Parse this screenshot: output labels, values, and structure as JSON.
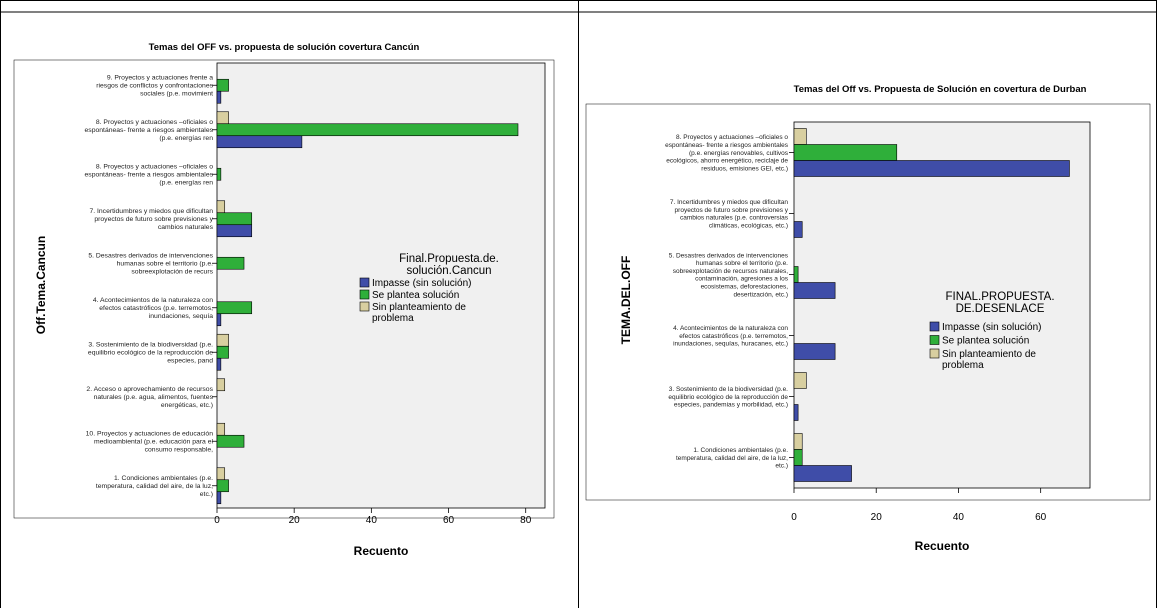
{
  "colors": {
    "impasse": "#3F4DA8",
    "plantea": "#2FAF3A",
    "sin": "#D8CFA0",
    "plot_bg": "#F0F0F0"
  },
  "chart_data": [
    {
      "type": "bar",
      "orientation": "horizontal",
      "title": "Temas del OFF vs. propuesta de solución covertura Cancún",
      "xlabel": "Recuento",
      "ylabel": "Off.Tema.Cancun",
      "xlim": [
        0,
        85
      ],
      "xticks": [
        0,
        20,
        40,
        60,
        80
      ],
      "legend": {
        "title": [
          "Final.Propuesta.de.",
          "solución.Cancun"
        ],
        "position": "right",
        "entries": [
          "Impasse (sin solución)",
          "Se plantea solución",
          "Sin planteamiento de problema"
        ]
      },
      "categories": [
        [
          "9. Proyectos y actuaciones frente a",
          "riesgos de conflictos y confrontaciones",
          "sociales (p.e. movimient"
        ],
        [
          "8. Proyectos y actuaciones –oficiales o",
          "espontáneas- frente a riesgos ambientales",
          "(p.e. energías ren"
        ],
        [
          "8. Proyectos y actuaciones –oficiales o",
          "espontáneas- frente a riesgos ambientales",
          "(p.e. energías ren"
        ],
        [
          "7. Incertidumbres y miedos que dificultan",
          "proyectos de futuro sobre previsiones y",
          "cambios naturales"
        ],
        [
          "5. Desastres derivados de intervenciones",
          "humanas sobre el territorio (p.e.",
          "sobreexplotación de recurs"
        ],
        [
          "4. Acontecimientos de la naturaleza con",
          "efectos catastróficos (p.e. terremotos,",
          "inundaciones, sequía"
        ],
        [
          "3. Sostenimiento de la biodiversidad (p.e.",
          "equilibrio ecológico de la reproducción de",
          "especies, pand"
        ],
        [
          "2. Acceso o aprovechamiento de recursos",
          "naturales (p.e. agua, alimentos, fuentes",
          "energéticas, etc.)"
        ],
        [
          "10. Proyectos y actuaciones de educación",
          "medioambiental (p.e. educación para el",
          "consumo responsable,"
        ],
        [
          "1. Condiciones ambientales (p.e.",
          "temperatura, calidad del aire, de la luz,",
          "etc.)"
        ]
      ],
      "series": [
        {
          "name": "Sin planteamiento de problema",
          "values": [
            0,
            3,
            0,
            2,
            0,
            0,
            3,
            2,
            2,
            2
          ]
        },
        {
          "name": "Se plantea solución",
          "values": [
            3,
            78,
            1,
            9,
            7,
            9,
            3,
            0,
            7,
            3
          ]
        },
        {
          "name": "Impasse (sin solución)",
          "values": [
            1,
            22,
            0,
            9,
            0,
            1,
            1,
            0,
            0,
            1
          ]
        }
      ]
    },
    {
      "type": "bar",
      "orientation": "horizontal",
      "title": "Temas del Off vs. Propuesta de Solución en covertura de Durban",
      "xlabel": "Recuento",
      "ylabel": "TEMA.DEL.OFF",
      "xlim": [
        0,
        72
      ],
      "xticks": [
        0,
        20,
        40,
        60
      ],
      "legend": {
        "title": [
          "FINAL.PROPUESTA.",
          "DE.DESENLACE"
        ],
        "position": "right",
        "entries": [
          "Impasse (sin solución)",
          "Se plantea solución",
          "Sin planteamiento de problema"
        ]
      },
      "categories": [
        [
          "8. Proyectos y actuaciones –oficiales o",
          "espontáneas- frente a riesgos ambientales",
          "(p.e. energías renovables, cultivos",
          "ecológicos, ahorro energético, reciclaje de",
          "residuos, emisiones GEI, etc.)"
        ],
        [
          "7. Incertidumbres y miedos que dificultan",
          "proyectos de futuro sobre previsiones y",
          "cambios naturales (p.e. controversias",
          "climáticas, ecológicas, etc.)"
        ],
        [
          "5. Desastres derivados de intervenciones",
          "humanas sobre el territorio (p.e.",
          "sobreexplotación de recursos naturales,",
          "contaminación, agresiones a los",
          "ecosistemas, deforestaciones,",
          "desertización, etc.)"
        ],
        [
          "4. Acontecimientos de la naturaleza con",
          "efectos catastróficos (p.e. terremotos,",
          "inundaciones, sequías, huracanes, etc.)"
        ],
        [
          "3. Sostenimiento de la biodiversidad (p.e.",
          "equilibrio ecológico de la reproducción de",
          "especies, pandemias y morbilidad, etc.)"
        ],
        [
          "1. Condiciones ambientales (p.e.",
          "temperatura, calidad del aire, de la luz,",
          "etc.)"
        ]
      ],
      "series": [
        {
          "name": "Sin planteamiento de problema",
          "values": [
            3,
            0,
            0,
            0,
            3,
            2
          ]
        },
        {
          "name": "Se plantea solución",
          "values": [
            25,
            0,
            1,
            0,
            0,
            2
          ]
        },
        {
          "name": "Impasse (sin solución)",
          "values": [
            67,
            2,
            10,
            10,
            1,
            14
          ]
        }
      ]
    }
  ]
}
